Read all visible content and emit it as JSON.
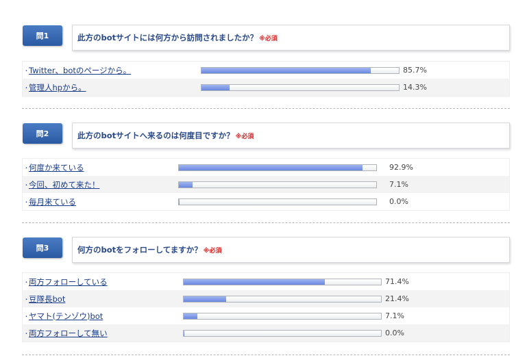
{
  "questions": [
    {
      "badge": "問1",
      "title": "此方のbotサイトには何方から訪問されましたか？",
      "required": "※必須",
      "answers": [
        {
          "label": "Twitter、botのページから。",
          "percent": 85.7,
          "percent_text": "85.7%"
        },
        {
          "label": "管理人hpから。",
          "percent": 14.3,
          "percent_text": "14.3%"
        }
      ]
    },
    {
      "badge": "問2",
      "title": "此方のbotサイトへ来るのは何度目ですか？",
      "required": "※必須",
      "answers": [
        {
          "label": "何度か来ている",
          "percent": 92.9,
          "percent_text": "92.9%"
        },
        {
          "label": "今回、初めて来た！",
          "percent": 7.1,
          "percent_text": "7.1%"
        },
        {
          "label": "毎月来ている",
          "percent": 0.0,
          "percent_text": "0.0%"
        }
      ]
    },
    {
      "badge": "問3",
      "title": "何方のbotをフォローしてますか？",
      "required": "※必須",
      "answers": [
        {
          "label": "両方フォローしている",
          "percent": 71.4,
          "percent_text": "71.4%"
        },
        {
          "label": "豆隊長bot",
          "percent": 21.4,
          "percent_text": "21.4%"
        },
        {
          "label": "ヤマト(テンゾウ)bot",
          "percent": 7.1,
          "percent_text": "7.1%"
        },
        {
          "label": "両方フォローして無い",
          "percent": 0.0,
          "percent_text": "0.0%"
        }
      ]
    }
  ]
}
